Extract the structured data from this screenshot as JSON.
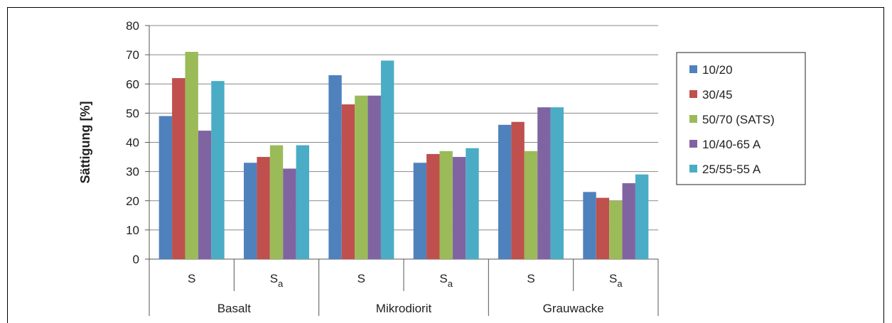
{
  "chart_data": {
    "type": "bar",
    "ylabel": "Sättigung [%]",
    "ylim": [
      0,
      80
    ],
    "yticks": [
      "0",
      "10",
      "20",
      "30",
      "40",
      "50",
      "60",
      "70",
      "80"
    ],
    "groups": [
      {
        "name": "Basalt",
        "categories": [
          {
            "base": "S",
            "sub": ""
          },
          {
            "base": "S",
            "sub": "a"
          }
        ]
      },
      {
        "name": "Mikrodiorit",
        "categories": [
          {
            "base": "S",
            "sub": ""
          },
          {
            "base": "S",
            "sub": "a"
          }
        ]
      },
      {
        "name": "Grauwacke",
        "categories": [
          {
            "base": "S",
            "sub": ""
          },
          {
            "base": "S",
            "sub": "a"
          }
        ]
      }
    ],
    "series": [
      {
        "name": "10/20",
        "color": "#4f81bd",
        "values": [
          49,
          33,
          63,
          33,
          46,
          23
        ]
      },
      {
        "name": "30/45",
        "color": "#c0504d",
        "values": [
          62,
          35,
          53,
          36,
          47,
          21
        ]
      },
      {
        "name": "50/70 (SATS)",
        "color": "#9bbb59",
        "values": [
          71,
          39,
          56,
          37,
          37,
          20
        ]
      },
      {
        "name": "10/40-65 A",
        "color": "#8064a2",
        "values": [
          44,
          31,
          56,
          35,
          52,
          26
        ]
      },
      {
        "name": "25/55-55 A",
        "color": "#4bacc6",
        "values": [
          61,
          39,
          68,
          38,
          52,
          29
        ]
      }
    ],
    "grid": true,
    "legend": "right"
  }
}
